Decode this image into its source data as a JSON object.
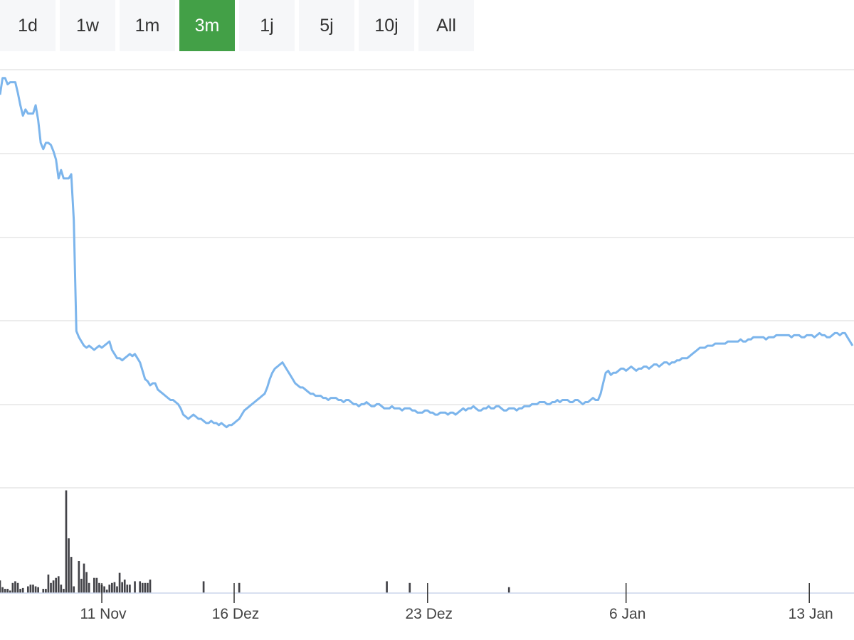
{
  "range_selector": {
    "items": [
      {
        "label": "1d",
        "name": "range-1d"
      },
      {
        "label": "1w",
        "name": "range-1w"
      },
      {
        "label": "1m",
        "name": "range-1m"
      },
      {
        "label": "3m",
        "name": "range-3m"
      },
      {
        "label": "1j",
        "name": "range-1j"
      },
      {
        "label": "5j",
        "name": "range-5j"
      },
      {
        "label": "10j",
        "name": "range-10j"
      },
      {
        "label": "All",
        "name": "range-all"
      }
    ],
    "selected": "3m",
    "active_color": "#43a047"
  },
  "chart_data": {
    "type": "line",
    "title": "",
    "xlabel": "",
    "ylabel": "",
    "grid": true,
    "price_line_color": "#7cb5ec",
    "volume_bar_color": "#434348",
    "x_ticks": [
      {
        "label": "11 Nov",
        "index": 40
      },
      {
        "label": "16 Dez",
        "index": 92
      },
      {
        "label": "23 Dez",
        "index": 168
      },
      {
        "label": "6 Jan",
        "index": 246
      },
      {
        "label": "13 Jan",
        "index": 318
      }
    ],
    "price": [
      4.88,
      4.96,
      4.96,
      4.93,
      4.94,
      4.94,
      4.94,
      4.89,
      4.83,
      4.78,
      4.81,
      4.79,
      4.79,
      4.79,
      4.83,
      4.76,
      4.65,
      4.62,
      4.65,
      4.65,
      4.64,
      4.61,
      4.57,
      4.48,
      4.52,
      4.48,
      4.48,
      4.48,
      4.5,
      4.28,
      3.75,
      3.72,
      3.7,
      3.68,
      3.67,
      3.68,
      3.67,
      3.66,
      3.67,
      3.68,
      3.67,
      3.68,
      3.69,
      3.7,
      3.66,
      3.64,
      3.62,
      3.62,
      3.61,
      3.62,
      3.63,
      3.64,
      3.63,
      3.64,
      3.62,
      3.6,
      3.56,
      3.52,
      3.51,
      3.49,
      3.5,
      3.5,
      3.47,
      3.46,
      3.45,
      3.44,
      3.43,
      3.42,
      3.42,
      3.41,
      3.4,
      3.38,
      3.35,
      3.34,
      3.33,
      3.34,
      3.35,
      3.34,
      3.33,
      3.33,
      3.32,
      3.31,
      3.31,
      3.32,
      3.31,
      3.31,
      3.3,
      3.31,
      3.3,
      3.29,
      3.3,
      3.3,
      3.31,
      3.32,
      3.33,
      3.35,
      3.37,
      3.38,
      3.39,
      3.4,
      3.41,
      3.42,
      3.43,
      3.44,
      3.45,
      3.48,
      3.52,
      3.55,
      3.57,
      3.58,
      3.59,
      3.6,
      3.58,
      3.56,
      3.54,
      3.52,
      3.5,
      3.49,
      3.48,
      3.48,
      3.47,
      3.46,
      3.45,
      3.45,
      3.44,
      3.44,
      3.44,
      3.43,
      3.43,
      3.42,
      3.43,
      3.43,
      3.43,
      3.42,
      3.42,
      3.41,
      3.42,
      3.42,
      3.41,
      3.4,
      3.4,
      3.39,
      3.4,
      3.4,
      3.41,
      3.4,
      3.39,
      3.39,
      3.4,
      3.4,
      3.39,
      3.38,
      3.38,
      3.38,
      3.39,
      3.38,
      3.38,
      3.38,
      3.37,
      3.38,
      3.38,
      3.38,
      3.37,
      3.37,
      3.36,
      3.36,
      3.36,
      3.37,
      3.37,
      3.36,
      3.36,
      3.35,
      3.35,
      3.36,
      3.36,
      3.36,
      3.35,
      3.36,
      3.36,
      3.35,
      3.36,
      3.37,
      3.38,
      3.37,
      3.38,
      3.38,
      3.39,
      3.38,
      3.37,
      3.37,
      3.38,
      3.38,
      3.39,
      3.38,
      3.38,
      3.39,
      3.39,
      3.38,
      3.37,
      3.37,
      3.38,
      3.38,
      3.38,
      3.37,
      3.38,
      3.38,
      3.39,
      3.39,
      3.39,
      3.4,
      3.4,
      3.4,
      3.41,
      3.41,
      3.41,
      3.4,
      3.4,
      3.41,
      3.41,
      3.42,
      3.41,
      3.42,
      3.42,
      3.42,
      3.41,
      3.41,
      3.42,
      3.42,
      3.41,
      3.4,
      3.41,
      3.41,
      3.42,
      3.43,
      3.42,
      3.42,
      3.45,
      3.5,
      3.55,
      3.56,
      3.54,
      3.55,
      3.55,
      3.56,
      3.57,
      3.57,
      3.56,
      3.57,
      3.58,
      3.57,
      3.56,
      3.57,
      3.57,
      3.58,
      3.58,
      3.57,
      3.58,
      3.59,
      3.59,
      3.58,
      3.59,
      3.6,
      3.6,
      3.59,
      3.6,
      3.6,
      3.61,
      3.61,
      3.62,
      3.62,
      3.62,
      3.63,
      3.64,
      3.65,
      3.66,
      3.67,
      3.67,
      3.67,
      3.68,
      3.68,
      3.68,
      3.69,
      3.69,
      3.69,
      3.69,
      3.69,
      3.7,
      3.7,
      3.7,
      3.7,
      3.7,
      3.71,
      3.7,
      3.7,
      3.71,
      3.71,
      3.72,
      3.72,
      3.72,
      3.72,
      3.72,
      3.71,
      3.72,
      3.72,
      3.72,
      3.73,
      3.73,
      3.73,
      3.73,
      3.73,
      3.73,
      3.72,
      3.73,
      3.73,
      3.73,
      3.72,
      3.72,
      3.73,
      3.73,
      3.73,
      3.72,
      3.73,
      3.74,
      3.73,
      3.73,
      3.72,
      3.72,
      3.73,
      3.74,
      3.74,
      3.73,
      3.74,
      3.74,
      3.72,
      3.7,
      3.68
    ],
    "price_ylim": [
      3.0,
      5.0
    ],
    "volume": [
      15,
      7,
      5,
      5,
      3,
      12,
      14,
      12,
      5,
      6,
      0,
      8,
      10,
      10,
      8,
      7,
      0,
      5,
      5,
      22,
      12,
      15,
      18,
      20,
      10,
      5,
      122,
      65,
      43,
      8,
      0,
      38,
      17,
      35,
      25,
      12,
      0,
      18,
      18,
      12,
      10,
      8,
      4,
      10,
      12,
      13,
      8,
      24,
      13,
      16,
      10,
      10,
      0,
      14,
      0,
      14,
      12,
      12,
      12,
      16,
      0,
      0,
      0,
      0,
      0,
      0,
      0,
      0,
      0,
      0,
      0,
      0,
      0,
      0,
      0,
      0,
      0,
      0,
      0,
      0,
      14,
      0,
      0,
      0,
      0,
      0,
      0,
      0,
      0,
      0,
      0,
      0,
      0,
      0,
      12,
      0,
      0,
      0,
      0,
      0,
      0,
      0,
      0,
      0,
      0,
      0,
      0,
      0,
      0,
      0,
      0,
      0,
      0,
      0,
      0,
      0,
      0,
      0,
      0,
      0,
      0,
      0,
      0,
      0,
      0,
      0,
      0,
      0,
      0,
      0,
      0,
      0,
      0,
      0,
      0,
      0,
      0,
      0,
      0,
      0,
      0,
      0,
      0,
      0,
      0,
      0,
      0,
      0,
      0,
      0,
      0,
      0,
      14,
      0,
      0,
      0,
      0,
      0,
      0,
      0,
      0,
      12,
      0,
      0,
      0,
      0,
      0,
      0,
      0,
      0,
      0,
      0,
      0,
      0,
      0,
      0,
      0,
      0,
      0,
      0,
      0,
      0,
      0,
      0,
      0,
      0,
      0,
      0,
      0,
      0,
      0,
      0,
      0,
      0,
      0,
      0,
      0,
      0,
      0,
      0,
      7,
      0,
      0,
      0,
      0,
      0,
      0,
      0,
      0,
      0,
      0,
      0,
      0,
      0,
      0,
      0,
      0,
      0,
      0,
      0,
      0,
      0,
      0,
      0,
      0,
      0,
      0,
      0,
      0,
      0,
      0,
      0,
      0,
      0,
      0,
      0,
      0,
      0,
      0,
      0,
      0,
      0,
      0,
      0,
      0,
      0,
      0,
      0,
      0,
      0,
      0,
      0,
      0,
      0,
      0,
      0,
      0,
      0,
      0,
      0,
      0,
      0,
      0,
      0,
      0,
      0,
      0,
      0,
      0,
      0,
      0,
      0,
      0,
      0,
      0,
      0,
      0,
      0,
      0,
      0,
      0,
      0,
      0,
      0,
      0,
      0,
      0,
      0,
      0,
      0,
      0,
      0,
      0,
      0,
      0,
      0,
      0,
      0,
      0,
      0,
      0,
      0,
      0,
      0,
      0,
      0,
      0,
      0,
      0,
      0,
      0,
      0,
      0,
      0,
      0,
      0,
      0,
      0,
      0,
      0,
      0,
      0,
      0,
      0,
      0,
      0,
      0,
      0,
      0,
      0,
      0,
      0,
      0,
      0,
      0,
      0,
      0,
      0,
      0,
      0,
      0,
      0,
      0,
      0,
      0,
      0,
      0,
      0
    ],
    "volume_ylim": [
      0,
      125
    ]
  }
}
